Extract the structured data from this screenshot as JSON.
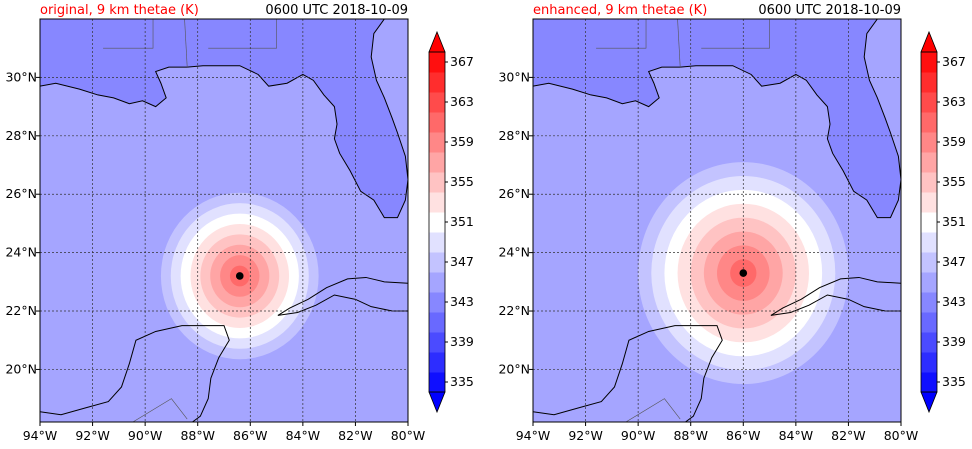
{
  "chart_data": [
    {
      "type": "heatmap",
      "title": "original, 9 km thetae (K)",
      "subtitle": "0600 UTC 2018-10-09",
      "lon_range": [
        -94,
        -80
      ],
      "lat_range": [
        18.2,
        32
      ],
      "xticks": [
        "94°W",
        "92°W",
        "90°W",
        "88°W",
        "86°W",
        "84°W",
        "82°W",
        "80°W"
      ],
      "yticks": [
        "20°N",
        "22°N",
        "24°N",
        "26°N",
        "28°N",
        "30°N"
      ],
      "grid": true,
      "storm_center": {
        "lon": -86.4,
        "lat": 23.2
      },
      "core_peak_K": 361,
      "core_radius_deg": 3.0
    },
    {
      "type": "heatmap",
      "title": "enhanced, 9 km thetae (K)",
      "subtitle": "0600 UTC 2018-10-09",
      "lon_range": [
        -94,
        -80
      ],
      "lat_range": [
        18.2,
        32
      ],
      "xticks": [
        "94°W",
        "92°W",
        "90°W",
        "88°W",
        "86°W",
        "84°W",
        "82°W",
        "80°W"
      ],
      "yticks": [
        "20°N",
        "22°N",
        "24°N",
        "26°N",
        "28°N",
        "30°N"
      ],
      "grid": true,
      "storm_center": {
        "lon": -86.0,
        "lat": 23.3
      },
      "core_peak_K": 361,
      "core_radius_deg": 4.0
    }
  ],
  "colorbar": {
    "min": 335,
    "max": 369,
    "step": 2,
    "tick_labels": [
      "335",
      "339",
      "343",
      "347",
      "351",
      "355",
      "359",
      "363",
      "367"
    ],
    "cmap": "bwr"
  }
}
